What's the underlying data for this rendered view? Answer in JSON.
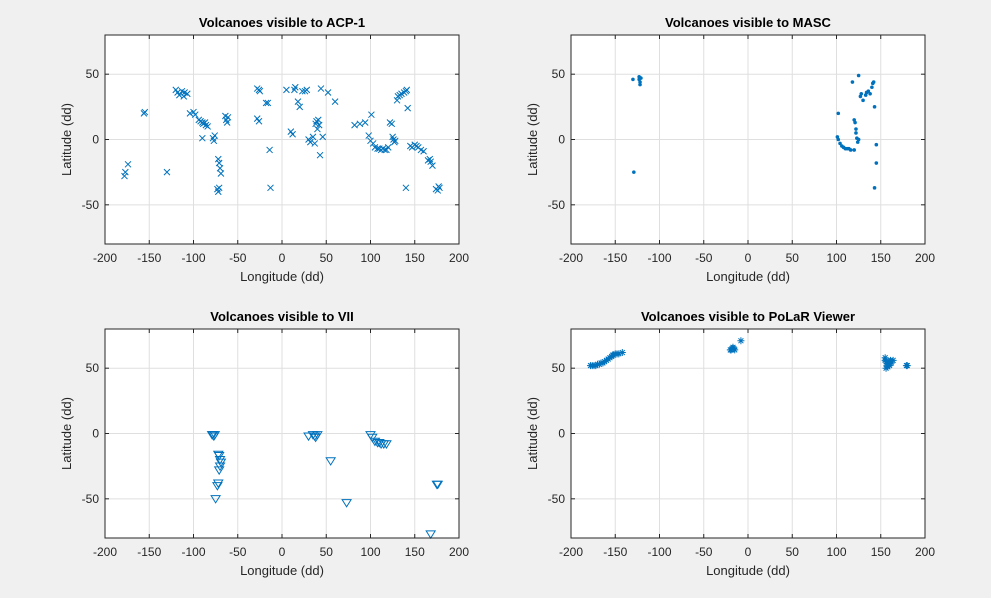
{
  "chart_data": [
    {
      "type": "scatter",
      "title": "Volcanoes visible to ACP-1",
      "xlabel": "Longitude (dd)",
      "ylabel": "Latitude (dd)",
      "xlim": [
        -200,
        200
      ],
      "ylim": [
        -80,
        80
      ],
      "xticks": [
        -200,
        -150,
        -100,
        -50,
        0,
        50,
        100,
        150,
        200
      ],
      "yticks": [
        -50,
        0,
        50
      ],
      "grid": true,
      "marker": "x",
      "color": "#0072bd",
      "points": [
        [
          -178,
          -28
        ],
        [
          -177,
          -25
        ],
        [
          -174,
          -19
        ],
        [
          -156,
          20
        ],
        [
          -155,
          21
        ],
        [
          -130,
          -25
        ],
        [
          -120,
          38
        ],
        [
          -118,
          36
        ],
        [
          -116,
          34
        ],
        [
          -113,
          37
        ],
        [
          -111,
          33
        ],
        [
          -110,
          36
        ],
        [
          -107,
          35
        ],
        [
          -104,
          20
        ],
        [
          -100,
          21
        ],
        [
          -98,
          19
        ],
        [
          -94,
          15
        ],
        [
          -92,
          14
        ],
        [
          -90,
          13
        ],
        [
          -89,
          12
        ],
        [
          -87,
          13
        ],
        [
          -86,
          11
        ],
        [
          -84,
          10
        ],
        [
          -90,
          1
        ],
        [
          -78,
          1
        ],
        [
          -77,
          -1
        ],
        [
          -76,
          3
        ],
        [
          -72,
          -15
        ],
        [
          -71,
          -18
        ],
        [
          -70,
          -22
        ],
        [
          -69,
          -26
        ],
        [
          -73,
          -38
        ],
        [
          -72,
          -40
        ],
        [
          -71,
          -37
        ],
        [
          -64,
          18
        ],
        [
          -63,
          15
        ],
        [
          -62,
          13
        ],
        [
          -61,
          17
        ],
        [
          -28,
          39
        ],
        [
          -26,
          38
        ],
        [
          -25,
          37
        ],
        [
          -28,
          16
        ],
        [
          -26,
          14
        ],
        [
          -18,
          28
        ],
        [
          -16,
          28
        ],
        [
          -14,
          -8
        ],
        [
          -13,
          -37
        ],
        [
          5,
          38
        ],
        [
          10,
          6
        ],
        [
          12,
          4
        ],
        [
          14,
          38
        ],
        [
          15,
          40
        ],
        [
          18,
          29
        ],
        [
          20,
          25
        ],
        [
          23,
          37
        ],
        [
          26,
          37
        ],
        [
          28,
          38
        ],
        [
          30,
          0
        ],
        [
          32,
          -2
        ],
        [
          35,
          2
        ],
        [
          37,
          -3
        ],
        [
          38,
          12
        ],
        [
          39,
          14
        ],
        [
          40,
          8
        ],
        [
          41,
          15
        ],
        [
          42,
          11
        ],
        [
          43,
          -12
        ],
        [
          44,
          39
        ],
        [
          46,
          2
        ],
        [
          52,
          36
        ],
        [
          60,
          29
        ],
        [
          82,
          11
        ],
        [
          88,
          12
        ],
        [
          94,
          13
        ],
        [
          98,
          3
        ],
        [
          100,
          -1
        ],
        [
          101,
          19
        ],
        [
          103,
          -3
        ],
        [
          105,
          -6
        ],
        [
          108,
          -7
        ],
        [
          110,
          -7
        ],
        [
          112,
          -8
        ],
        [
          114,
          -7
        ],
        [
          116,
          -8
        ],
        [
          118,
          -8
        ],
        [
          120,
          -6
        ],
        [
          122,
          13
        ],
        [
          124,
          12
        ],
        [
          125,
          2
        ],
        [
          126,
          0
        ],
        [
          127,
          -2
        ],
        [
          128,
          -1
        ],
        [
          130,
          30
        ],
        [
          131,
          33
        ],
        [
          133,
          34
        ],
        [
          135,
          35
        ],
        [
          138,
          36
        ],
        [
          140,
          37
        ],
        [
          141,
          38
        ],
        [
          142,
          24
        ],
        [
          140,
          -37
        ],
        [
          145,
          -5
        ],
        [
          147,
          -6
        ],
        [
          150,
          -4
        ],
        [
          152,
          -5
        ],
        [
          154,
          -6
        ],
        [
          157,
          -8
        ],
        [
          160,
          -9
        ],
        [
          165,
          -16
        ],
        [
          167,
          -15
        ],
        [
          168,
          -17
        ],
        [
          170,
          -20
        ],
        [
          174,
          -38
        ],
        [
          176,
          -39
        ],
        [
          177,
          -36
        ],
        [
          178,
          -37
        ]
      ]
    },
    {
      "type": "scatter",
      "title": "Volcanoes visible to MASC",
      "xlabel": "Longitude (dd)",
      "ylabel": "Latitude (dd)",
      "xlim": [
        -200,
        200
      ],
      "ylim": [
        -80,
        80
      ],
      "xticks": [
        -200,
        -150,
        -100,
        -50,
        0,
        50,
        100,
        150,
        200
      ],
      "yticks": [
        -50,
        0,
        50
      ],
      "grid": true,
      "marker": "dot",
      "color": "#0072bd",
      "points": [
        [
          -130,
          46
        ],
        [
          -123,
          48
        ],
        [
          -123,
          46
        ],
        [
          -122,
          44
        ],
        [
          -122,
          42
        ],
        [
          -121,
          47
        ],
        [
          -129,
          -25
        ],
        [
          101,
          2
        ],
        [
          102,
          0
        ],
        [
          104,
          -3
        ],
        [
          106,
          -5
        ],
        [
          108,
          -6
        ],
        [
          110,
          -7
        ],
        [
          112,
          -7
        ],
        [
          114,
          -7
        ],
        [
          116,
          -8
        ],
        [
          120,
          -8
        ],
        [
          102,
          20
        ],
        [
          120,
          15
        ],
        [
          121,
          13
        ],
        [
          122,
          8
        ],
        [
          122,
          5
        ],
        [
          123,
          1
        ],
        [
          124,
          -2
        ],
        [
          125,
          0
        ],
        [
          118,
          44
        ],
        [
          125,
          49
        ],
        [
          127,
          33
        ],
        [
          128,
          35
        ],
        [
          130,
          30
        ],
        [
          133,
          34
        ],
        [
          134,
          36
        ],
        [
          136,
          37
        ],
        [
          138,
          35
        ],
        [
          140,
          40
        ],
        [
          141,
          43
        ],
        [
          142,
          44
        ],
        [
          143,
          25
        ],
        [
          143,
          -37
        ],
        [
          145,
          -4
        ],
        [
          145,
          -18
        ]
      ]
    },
    {
      "type": "scatter",
      "title": "Volcanoes visible to VII",
      "xlabel": "Longitude (dd)",
      "ylabel": "Latitude (dd)",
      "xlim": [
        -200,
        200
      ],
      "ylim": [
        -80,
        80
      ],
      "xticks": [
        -200,
        -150,
        -100,
        -50,
        0,
        50,
        100,
        150,
        200
      ],
      "yticks": [
        -50,
        0,
        50
      ],
      "grid": true,
      "marker": "triangle-down",
      "color": "#0072bd",
      "points": [
        [
          -79,
          -1
        ],
        [
          -78,
          -1
        ],
        [
          -77,
          -2
        ],
        [
          -76,
          -1
        ],
        [
          -72,
          -16
        ],
        [
          -71,
          -17
        ],
        [
          -70,
          -20
        ],
        [
          -69,
          -22
        ],
        [
          -70,
          -25
        ],
        [
          -71,
          -28
        ],
        [
          -72,
          -38
        ],
        [
          -73,
          -40
        ],
        [
          -75,
          -50
        ],
        [
          30,
          -2
        ],
        [
          35,
          -1
        ],
        [
          37,
          -2
        ],
        [
          38,
          -3
        ],
        [
          40,
          -1
        ],
        [
          55,
          -21
        ],
        [
          73,
          -53
        ],
        [
          100,
          -1
        ],
        [
          102,
          -3
        ],
        [
          105,
          -6
        ],
        [
          108,
          -7
        ],
        [
          110,
          -7
        ],
        [
          112,
          -8
        ],
        [
          115,
          -8
        ],
        [
          118,
          -8
        ],
        [
          168,
          -77
        ],
        [
          175,
          -39
        ],
        [
          176,
          -39
        ]
      ]
    },
    {
      "type": "scatter",
      "title": "Volcanoes visible to PoLaR Viewer",
      "xlabel": "Longitude (dd)",
      "ylabel": "Latitude (dd)",
      "xlim": [
        -200,
        200
      ],
      "ylim": [
        -80,
        80
      ],
      "xticks": [
        -200,
        -150,
        -100,
        -50,
        0,
        50,
        100,
        150,
        200
      ],
      "yticks": [
        -50,
        0,
        50
      ],
      "grid": true,
      "marker": "asterisk",
      "color": "#0072bd",
      "points": [
        [
          -178,
          52
        ],
        [
          -176,
          52
        ],
        [
          -174,
          52
        ],
        [
          -172,
          52
        ],
        [
          -170,
          53
        ],
        [
          -168,
          53
        ],
        [
          -166,
          54
        ],
        [
          -164,
          54
        ],
        [
          -162,
          55
        ],
        [
          -160,
          56
        ],
        [
          -158,
          57
        ],
        [
          -156,
          58
        ],
        [
          -154,
          59
        ],
        [
          -153,
          60
        ],
        [
          -152,
          60
        ],
        [
          -150,
          61
        ],
        [
          -148,
          61
        ],
        [
          -146,
          61
        ],
        [
          -142,
          62
        ],
        [
          -20,
          64
        ],
        [
          -19,
          64
        ],
        [
          -18,
          65
        ],
        [
          -17,
          66
        ],
        [
          -16,
          65
        ],
        [
          -15,
          64
        ],
        [
          -8,
          71
        ],
        [
          155,
          56
        ],
        [
          156,
          55
        ],
        [
          157,
          52
        ],
        [
          158,
          53
        ],
        [
          159,
          54
        ],
        [
          160,
          55
        ],
        [
          161,
          56
        ],
        [
          155,
          58
        ],
        [
          156,
          50
        ],
        [
          158,
          51
        ],
        [
          160,
          52
        ],
        [
          162,
          54
        ],
        [
          164,
          56
        ],
        [
          180,
          52
        ],
        [
          179,
          52
        ]
      ]
    }
  ]
}
